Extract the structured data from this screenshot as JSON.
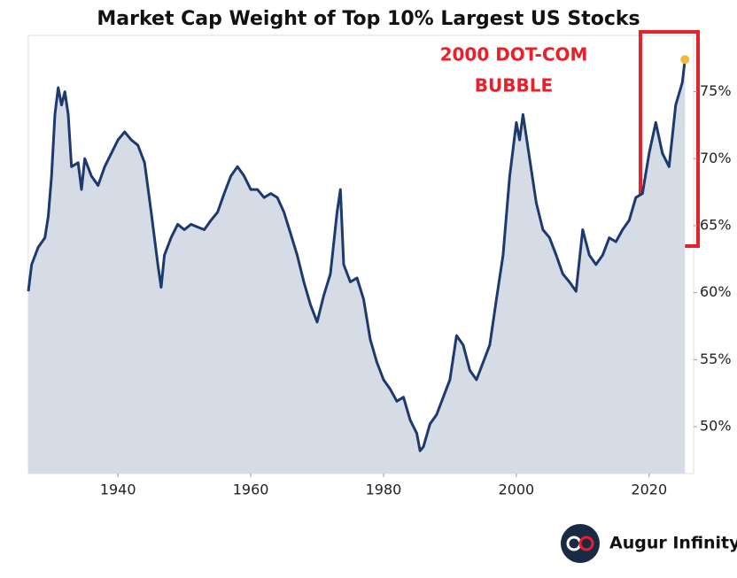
{
  "chart_data": {
    "type": "line",
    "title": "Market Cap Weight of Top 10% Largest US Stocks",
    "annotation": [
      "2000 DOT-COM",
      "BUBBLE"
    ],
    "source": "Augur Infinity",
    "color": "#1c3a6e",
    "fill_color": "#d6dce6",
    "highlight_color": "#f0b93a",
    "annotation_color": "#e8202a",
    "x": [
      1926.5,
      1927,
      1928,
      1929,
      1929.5,
      1930,
      1930.5,
      1931,
      1931.5,
      1932,
      1932.5,
      1933,
      1934,
      1934.5,
      1935,
      1936,
      1937,
      1938,
      1939,
      1940,
      1941,
      1942,
      1943,
      1944,
      1945,
      1946,
      1946.5,
      1947,
      1948,
      1949,
      1950,
      1951,
      1952,
      1953,
      1954,
      1955,
      1956,
      1957,
      1958,
      1959,
      1960,
      1961,
      1962,
      1963,
      1964,
      1965,
      1966,
      1967,
      1968,
      1969,
      1970,
      1971,
      1972,
      1973,
      1973.5,
      1974,
      1975,
      1976,
      1977,
      1978,
      1979,
      1980,
      1981,
      1982,
      1983,
      1984,
      1985,
      1985.5,
      1986,
      1987,
      1988,
      1989,
      1990,
      1991,
      1992,
      1993,
      1994,
      1995,
      1996,
      1997,
      1998,
      1999,
      2000,
      2000.5,
      2001,
      2002,
      2003,
      2004,
      2005,
      2006,
      2007,
      2008,
      2009,
      2010,
      2011,
      2012,
      2013,
      2014,
      2015,
      2016,
      2017,
      2018,
      2019,
      2020,
      2021,
      2022,
      2023,
      2024,
      2025,
      2025.4
    ],
    "values": [
      60.1,
      62.1,
      63.4,
      64.1,
      65.7,
      68.7,
      73.3,
      75.3,
      74,
      75,
      73.3,
      69.4,
      69.7,
      67.7,
      70,
      68.7,
      68,
      69.4,
      70.4,
      71.4,
      72,
      71.4,
      71,
      69.7,
      66,
      62.1,
      60.4,
      62.8,
      64.1,
      65.1,
      64.7,
      65.1,
      64.9,
      64.7,
      65.4,
      66,
      67.4,
      68.7,
      69.4,
      68.7,
      67.7,
      67.7,
      67.1,
      67.4,
      67.1,
      66,
      64.4,
      62.8,
      60.8,
      59.1,
      57.8,
      59.8,
      61.4,
      66,
      67.7,
      62.1,
      60.8,
      61.1,
      59.5,
      56.5,
      54.8,
      53.5,
      52.8,
      51.9,
      52.2,
      50.5,
      49.5,
      48.2,
      48.5,
      50.2,
      50.9,
      52.2,
      53.5,
      56.8,
      56.1,
      54.2,
      53.5,
      54.8,
      56.1,
      59.5,
      62.8,
      68.7,
      72.7,
      71.4,
      73.3,
      70,
      66.7,
      64.7,
      64.1,
      62.8,
      61.4,
      60.8,
      60.1,
      64.7,
      62.8,
      62.1,
      62.8,
      64.1,
      63.8,
      64.7,
      65.4,
      67.1,
      67.4,
      70.4,
      72.7,
      70.4,
      69.4,
      74,
      75.7,
      77.4
    ],
    "xlim": [
      1926.5,
      2026.7
    ],
    "xticks": [
      1940,
      1960,
      1980,
      2000,
      2020
    ],
    "ylim": [
      46.5,
      79.2
    ],
    "yticks": [
      {
        "value": 50,
        "label": "50%"
      },
      {
        "value": 55,
        "label": "55%"
      },
      {
        "value": 60,
        "label": "60%"
      },
      {
        "value": 65,
        "label": "65%"
      },
      {
        "value": 70,
        "label": "70%"
      },
      {
        "value": 75,
        "label": "75%"
      }
    ],
    "grid": false
  }
}
